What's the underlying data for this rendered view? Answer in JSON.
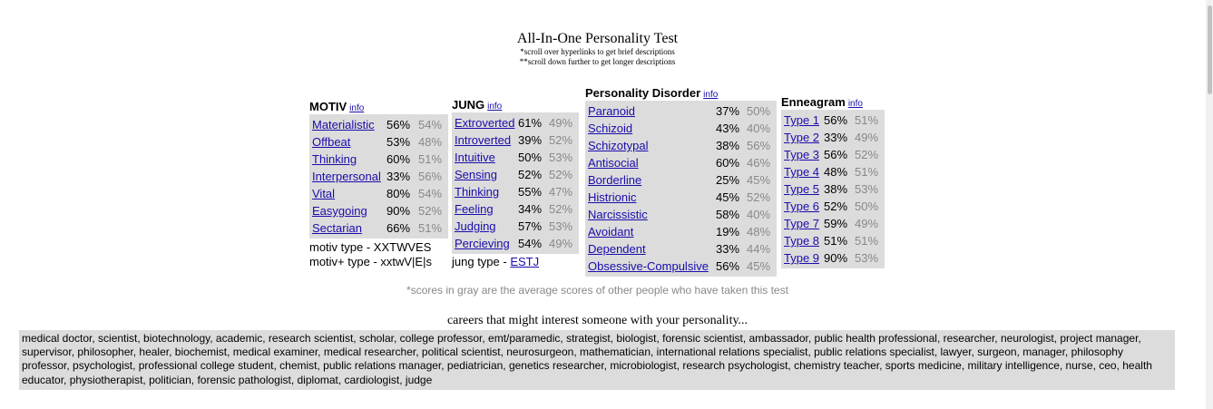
{
  "page": {
    "title": "All-In-One Personality Test",
    "note1": "*scroll over hyperlinks to get brief descriptions",
    "note2": "**scroll down further to get longer descriptions",
    "gray_note": "*scores in gray are the average scores of other people who have taken this test",
    "careers_heading": "careers that might interest someone with your personality...",
    "careers_text": "medical doctor, scientist, biotechnology, academic, research scientist, scholar, college professor, emt/paramedic, strategist, biologist, forensic scientist, ambassador, public health professional, researcher, neurologist, project manager, supervisor, philosopher, healer, biochemist, medical examiner, medical researcher, political scientist, neurosurgeon, mathematician, international relations specialist, public relations specialist, lawyer, surgeon, manager, philosophy professor, psychologist, professional college student, chemist, public relations manager, pediatrician, genetics researcher, microbiologist, research psychologist, chemistry teacher, sports medicine, military intelligence, nurse, ceo, health educator, physiotherapist, politician, forensic pathologist, diplomat, cardiologist, judge"
  },
  "motiv": {
    "heading": "MOTIV",
    "info": "info",
    "rows": [
      {
        "label": "Materialistic",
        "you": "56%",
        "avg": "54%"
      },
      {
        "label": "Offbeat",
        "you": "53%",
        "avg": "48%"
      },
      {
        "label": "Thinking",
        "you": "60%",
        "avg": "51%"
      },
      {
        "label": "Interpersonal",
        "you": "33%",
        "avg": "56%"
      },
      {
        "label": "Vital",
        "you": "80%",
        "avg": "54%"
      },
      {
        "label": "Easygoing",
        "you": "90%",
        "avg": "52%"
      },
      {
        "label": "Sectarian",
        "you": "66%",
        "avg": "51%"
      }
    ],
    "type_line": "motiv type - XXTWVES",
    "type_plus_line": "motiv+ type - xxtwV|E|s"
  },
  "jung": {
    "heading": "JUNG",
    "info": "info",
    "rows": [
      {
        "label": "Extroverted",
        "you": "61%",
        "avg": "49%"
      },
      {
        "label": "Introverted",
        "you": "39%",
        "avg": "52%"
      },
      {
        "label": "Intuitive",
        "you": "50%",
        "avg": "53%"
      },
      {
        "label": "Sensing",
        "you": "52%",
        "avg": "52%"
      },
      {
        "label": "Thinking",
        "you": "55%",
        "avg": "47%"
      },
      {
        "label": "Feeling",
        "you": "34%",
        "avg": "52%"
      },
      {
        "label": "Judging",
        "you": "57%",
        "avg": "53%"
      },
      {
        "label": "Percieving",
        "you": "54%",
        "avg": "49%"
      }
    ],
    "type_prefix": "jung type - ",
    "type_value": "ESTJ"
  },
  "pd": {
    "heading": "Personality Disorder",
    "info": "info",
    "rows": [
      {
        "label": "Paranoid",
        "you": "37%",
        "avg": "50%"
      },
      {
        "label": "Schizoid",
        "you": "43%",
        "avg": "40%"
      },
      {
        "label": "Schizotypal",
        "you": "38%",
        "avg": "56%"
      },
      {
        "label": "Antisocial",
        "you": "60%",
        "avg": "46%"
      },
      {
        "label": "Borderline",
        "you": "25%",
        "avg": "45%"
      },
      {
        "label": "Histrionic",
        "you": "45%",
        "avg": "52%"
      },
      {
        "label": "Narcissistic",
        "you": "58%",
        "avg": "40%"
      },
      {
        "label": "Avoidant",
        "you": "19%",
        "avg": "48%"
      },
      {
        "label": "Dependent",
        "you": "33%",
        "avg": "44%"
      },
      {
        "label": "Obsessive-Compulsive",
        "you": "56%",
        "avg": "45%"
      }
    ]
  },
  "enneagram": {
    "heading": "Enneagram",
    "info": "info",
    "rows": [
      {
        "label": "Type 1",
        "you": "56%",
        "avg": "51%"
      },
      {
        "label": "Type 2",
        "you": "33%",
        "avg": "49%"
      },
      {
        "label": "Type 3",
        "you": "56%",
        "avg": "52%"
      },
      {
        "label": "Type 4",
        "you": "48%",
        "avg": "51%"
      },
      {
        "label": "Type 5",
        "you": "38%",
        "avg": "53%"
      },
      {
        "label": "Type 6",
        "you": "52%",
        "avg": "50%"
      },
      {
        "label": "Type 7",
        "you": "59%",
        "avg": "49%"
      },
      {
        "label": "Type 8",
        "you": "51%",
        "avg": "51%"
      },
      {
        "label": "Type 9",
        "you": "90%",
        "avg": "53%"
      }
    ]
  }
}
